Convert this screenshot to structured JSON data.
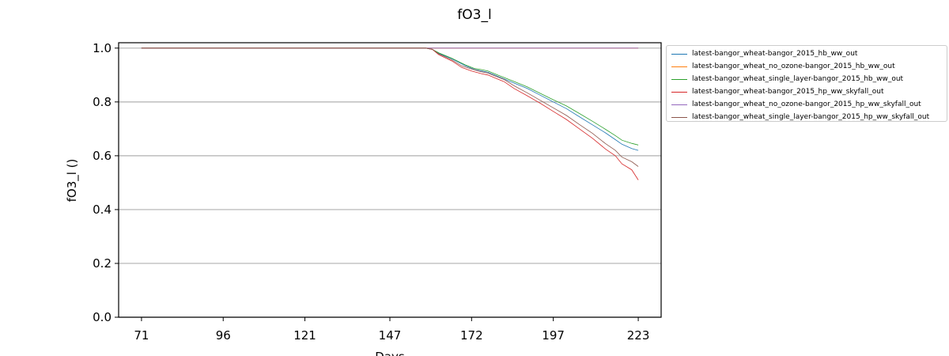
{
  "chart_data": {
    "type": "line",
    "title": "fO3_l",
    "xlabel": "Days",
    "ylabel": "fO3_l ()",
    "xlim": [
      64,
      230
    ],
    "ylim": [
      0.0,
      1.02
    ],
    "xticks": [
      71,
      96,
      121,
      147,
      172,
      197,
      223
    ],
    "yticks": [
      0.0,
      0.2,
      0.4,
      0.6,
      0.8,
      1.0
    ],
    "ytick_labels": [
      "0.0",
      "0.2",
      "0.4",
      "0.6",
      "0.8",
      "1.0"
    ],
    "grid": "horizontal",
    "legend_position": "outside-right",
    "series": [
      {
        "name": "latest-bangor_wheat-bangor_2015_hb_ww_out",
        "color": "#1f77b4",
        "points": [
          [
            71,
            1.0
          ],
          [
            158,
            1.0
          ],
          [
            160,
            0.995
          ],
          [
            162,
            0.98
          ],
          [
            166,
            0.96
          ],
          [
            170,
            0.935
          ],
          [
            173,
            0.92
          ],
          [
            175,
            0.915
          ],
          [
            177,
            0.91
          ],
          [
            179,
            0.9
          ],
          [
            181,
            0.89
          ],
          [
            185,
            0.87
          ],
          [
            189,
            0.85
          ],
          [
            193,
            0.825
          ],
          [
            197,
            0.8
          ],
          [
            201,
            0.775
          ],
          [
            205,
            0.745
          ],
          [
            209,
            0.715
          ],
          [
            213,
            0.685
          ],
          [
            216,
            0.66
          ],
          [
            218,
            0.643
          ],
          [
            221,
            0.627
          ],
          [
            223,
            0.62
          ]
        ]
      },
      {
        "name": "latest-bangor_wheat_no_ozone-bangor_2015_hb_ww_out",
        "color": "#ff7f0e",
        "points": [
          [
            71,
            1.0
          ],
          [
            223,
            1.0
          ]
        ]
      },
      {
        "name": "latest-bangor_wheat_single_layer-bangor_2015_hb_ww_out",
        "color": "#2ca02c",
        "points": [
          [
            71,
            1.0
          ],
          [
            158,
            1.0
          ],
          [
            160,
            0.995
          ],
          [
            162,
            0.982
          ],
          [
            166,
            0.962
          ],
          [
            170,
            0.938
          ],
          [
            173,
            0.924
          ],
          [
            175,
            0.92
          ],
          [
            177,
            0.915
          ],
          [
            179,
            0.905
          ],
          [
            181,
            0.895
          ],
          [
            185,
            0.876
          ],
          [
            189,
            0.856
          ],
          [
            193,
            0.832
          ],
          [
            197,
            0.808
          ],
          [
            201,
            0.785
          ],
          [
            205,
            0.757
          ],
          [
            209,
            0.728
          ],
          [
            213,
            0.698
          ],
          [
            216,
            0.675
          ],
          [
            218,
            0.658
          ],
          [
            221,
            0.646
          ],
          [
            223,
            0.64
          ]
        ]
      },
      {
        "name": "latest-bangor_wheat-bangor_2015_hp_ww_skyfall_out",
        "color": "#d62728",
        "points": [
          [
            71,
            1.0
          ],
          [
            158,
            1.0
          ],
          [
            160,
            0.995
          ],
          [
            162,
            0.975
          ],
          [
            166,
            0.952
          ],
          [
            169,
            0.928
          ],
          [
            172,
            0.915
          ],
          [
            175,
            0.905
          ],
          [
            177,
            0.9
          ],
          [
            179,
            0.89
          ],
          [
            182,
            0.875
          ],
          [
            185,
            0.85
          ],
          [
            189,
            0.823
          ],
          [
            193,
            0.795
          ],
          [
            197,
            0.765
          ],
          [
            201,
            0.735
          ],
          [
            205,
            0.7
          ],
          [
            209,
            0.665
          ],
          [
            213,
            0.625
          ],
          [
            216,
            0.6
          ],
          [
            218,
            0.57
          ],
          [
            221,
            0.548
          ],
          [
            223,
            0.51
          ]
        ]
      },
      {
        "name": "latest-bangor_wheat_no_ozone-bangor_2015_hp_ww_skyfall_out",
        "color": "#9467bd",
        "points": [
          [
            71,
            1.0
          ],
          [
            223,
            1.0
          ]
        ]
      },
      {
        "name": "latest-bangor_wheat_single_layer-bangor_2015_hp_ww_skyfall_out",
        "color": "#8c564b",
        "points": [
          [
            71,
            1.0
          ],
          [
            158,
            1.0
          ],
          [
            160,
            0.996
          ],
          [
            162,
            0.978
          ],
          [
            166,
            0.956
          ],
          [
            169,
            0.934
          ],
          [
            172,
            0.922
          ],
          [
            175,
            0.912
          ],
          [
            177,
            0.907
          ],
          [
            179,
            0.897
          ],
          [
            182,
            0.883
          ],
          [
            185,
            0.86
          ],
          [
            189,
            0.834
          ],
          [
            193,
            0.806
          ],
          [
            197,
            0.778
          ],
          [
            201,
            0.75
          ],
          [
            205,
            0.716
          ],
          [
            209,
            0.683
          ],
          [
            213,
            0.645
          ],
          [
            216,
            0.62
          ],
          [
            218,
            0.595
          ],
          [
            221,
            0.578
          ],
          [
            223,
            0.56
          ]
        ]
      }
    ]
  }
}
